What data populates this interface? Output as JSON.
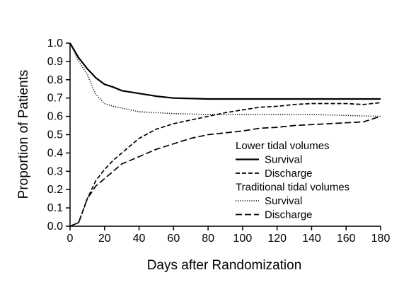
{
  "chart_data": {
    "type": "line",
    "xlabel": "Days after Randomization",
    "ylabel": "Proportion of Patients",
    "xlim": [
      0,
      180
    ],
    "ylim": [
      0.0,
      1.0
    ],
    "x_ticks": [
      "0",
      "20",
      "40",
      "60",
      "80",
      "100",
      "120",
      "140",
      "160",
      "180"
    ],
    "y_ticks": [
      "0.0",
      "0.1",
      "0.2",
      "0.3",
      "0.4",
      "0.5",
      "0.6",
      "0.7",
      "0.8",
      "0.9",
      "1.0"
    ],
    "grid": false,
    "legend": {
      "placement": "bottom-right",
      "groups": [
        {
          "title": "Lower tidal volumes",
          "entries": [
            "Survival",
            "Discharge"
          ]
        },
        {
          "title": "Traditional tidal volumes",
          "entries": [
            "Survival",
            "Discharge"
          ]
        }
      ]
    },
    "series": [
      {
        "name": "Survival",
        "group": "Lower tidal volumes",
        "style": "solid",
        "x": [
          0,
          5,
          10,
          15,
          20,
          25,
          30,
          40,
          50,
          60,
          80,
          100,
          120,
          140,
          160,
          180
        ],
        "y": [
          1.0,
          0.92,
          0.86,
          0.81,
          0.775,
          0.76,
          0.74,
          0.725,
          0.71,
          0.7,
          0.695,
          0.695,
          0.695,
          0.695,
          0.695,
          0.695
        ]
      },
      {
        "name": "Discharge",
        "group": "Lower tidal volumes",
        "style": "dashed",
        "x": [
          0,
          5,
          10,
          15,
          20,
          25,
          30,
          40,
          50,
          60,
          70,
          80,
          90,
          100,
          110,
          120,
          130,
          140,
          150,
          160,
          170,
          180
        ],
        "y": [
          0.0,
          0.02,
          0.15,
          0.25,
          0.31,
          0.36,
          0.4,
          0.48,
          0.53,
          0.56,
          0.58,
          0.6,
          0.62,
          0.635,
          0.65,
          0.655,
          0.665,
          0.67,
          0.67,
          0.67,
          0.665,
          0.675
        ]
      },
      {
        "name": "Survival",
        "group": "Traditional tidal volumes",
        "style": "dotted",
        "x": [
          0,
          5,
          10,
          13,
          15,
          20,
          25,
          30,
          40,
          50,
          60,
          80,
          100,
          120,
          140,
          160,
          180
        ],
        "y": [
          1.0,
          0.9,
          0.83,
          0.76,
          0.72,
          0.67,
          0.655,
          0.645,
          0.625,
          0.62,
          0.615,
          0.61,
          0.61,
          0.61,
          0.61,
          0.605,
          0.6
        ]
      },
      {
        "name": "Discharge",
        "group": "Traditional tidal volumes",
        "style": "longdash",
        "x": [
          0,
          5,
          10,
          15,
          20,
          25,
          30,
          40,
          50,
          60,
          70,
          80,
          90,
          100,
          110,
          120,
          130,
          140,
          150,
          160,
          170,
          180
        ],
        "y": [
          0.0,
          0.02,
          0.15,
          0.22,
          0.26,
          0.3,
          0.34,
          0.38,
          0.42,
          0.45,
          0.48,
          0.5,
          0.51,
          0.52,
          0.535,
          0.54,
          0.55,
          0.555,
          0.56,
          0.565,
          0.57,
          0.6
        ]
      }
    ]
  }
}
